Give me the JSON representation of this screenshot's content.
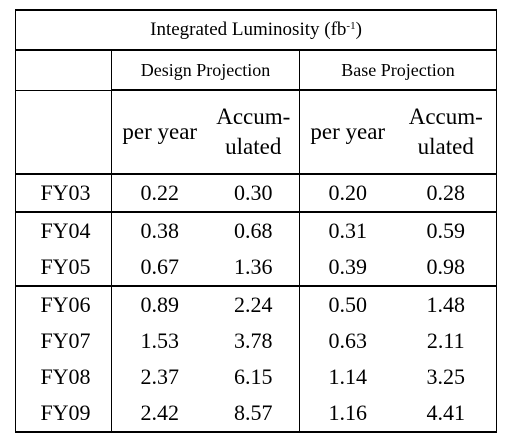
{
  "table": {
    "title_main": "Integrated Luminosity (fb",
    "title_sup": "-1",
    "title_end": ")",
    "groups": [
      "Design Projection",
      "Base Projection"
    ],
    "subheaders": [
      "per year",
      "Accum-ulated",
      "per year",
      "Accum-ulated"
    ],
    "subheader_lines": {
      "per_year": "per year",
      "accum_1": "Accum-",
      "accum_2": "ulated"
    },
    "rows": [
      {
        "year": "FY03",
        "design_per_year": "0.22",
        "design_accumulated": "0.30",
        "base_per_year": "0.20",
        "base_accumulated": "0.28"
      },
      {
        "year": "FY04",
        "design_per_year": "0.38",
        "design_accumulated": "0.68",
        "base_per_year": "0.31",
        "base_accumulated": "0.59"
      },
      {
        "year": "FY05",
        "design_per_year": "0.67",
        "design_accumulated": "1.36",
        "base_per_year": "0.39",
        "base_accumulated": "0.98"
      },
      {
        "year": "FY06",
        "design_per_year": "0.89",
        "design_accumulated": "2.24",
        "base_per_year": "0.50",
        "base_accumulated": "1.48"
      },
      {
        "year": "FY07",
        "design_per_year": "1.53",
        "design_accumulated": "3.78",
        "base_per_year": "0.63",
        "base_accumulated": "2.11"
      },
      {
        "year": "FY08",
        "design_per_year": "2.37",
        "design_accumulated": "6.15",
        "base_per_year": "1.14",
        "base_accumulated": "3.25"
      },
      {
        "year": "FY09",
        "design_per_year": "2.42",
        "design_accumulated": "8.57",
        "base_per_year": "1.16",
        "base_accumulated": "4.41"
      }
    ]
  }
}
